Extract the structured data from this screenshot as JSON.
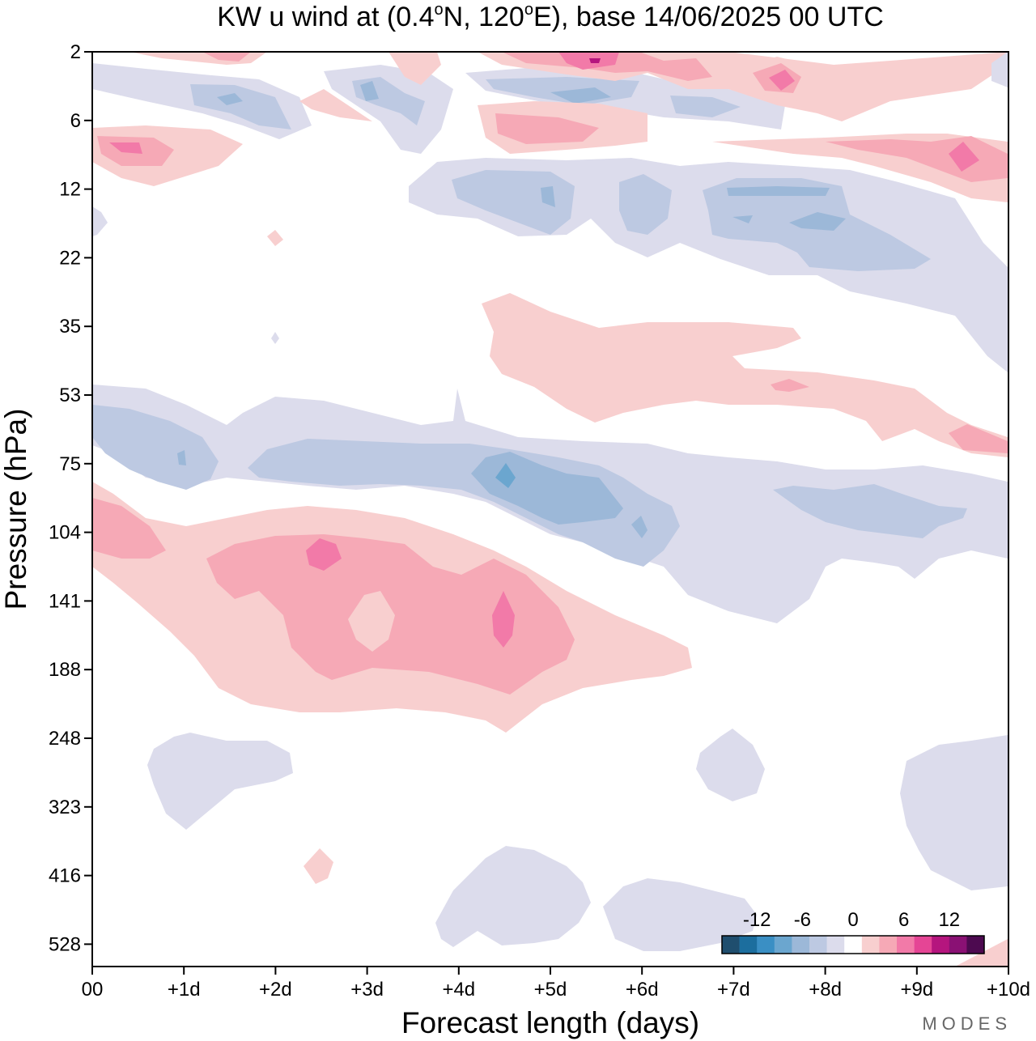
{
  "chart_data": {
    "type": "heatmap",
    "title": "KW u wind at (0.4°N, 120°E),  base 14/06/2025  00 UTC",
    "title_parts": {
      "pre": "KW u wind at (0.4",
      "deg1": "o",
      "mid": "N, 120",
      "deg2": "o",
      "post": "E),  base 14/06/2025  00 UTC"
    },
    "xlabel": "Forecast length (days)",
    "ylabel": "Pressure (hPa)",
    "x_ticks": [
      "00",
      "+1d",
      "+2d",
      "+3d",
      "+4d",
      "+5d",
      "+6d",
      "+7d",
      "+8d",
      "+9d",
      "+10d"
    ],
    "y_ticks": [
      "2",
      "6",
      "12",
      "22",
      "35",
      "53",
      "75",
      "104",
      "141",
      "188",
      "248",
      "323",
      "416",
      "528"
    ],
    "xlim": [
      0,
      10
    ],
    "colorbar": {
      "tick_labels": [
        "-12",
        "-6",
        "0",
        "6",
        "12"
      ],
      "colors": [
        "#1f4e6e",
        "#1c6e9e",
        "#3a8fc4",
        "#6ba6cf",
        "#9cb8d8",
        "#bdc9e2",
        "#dcdcec",
        "#ffffff",
        "#f8cfcf",
        "#f6a9b6",
        "#f27aa8",
        "#e54595",
        "#b5157e",
        "#8a1174",
        "#4d0a50"
      ]
    },
    "fields": [
      {
        "name": "pos6_top",
        "level": "+6",
        "t_range": [
          5.2,
          6.0
        ],
        "p_range": [
          2,
          3
        ]
      },
      {
        "name": "neg6_upper",
        "level": "-6",
        "t_range": [
          4.5,
          7.9
        ],
        "p_range": [
          10,
          20
        ]
      },
      {
        "name": "pos3_mid",
        "level": "+3",
        "t_range": [
          4.2,
          9.5
        ],
        "p_range": [
          30,
          65
        ]
      },
      {
        "name": "neg6_75hPa",
        "level": "-6",
        "t_range": [
          0.0,
          6.3
        ],
        "p_range": [
          53,
          104
        ]
      },
      {
        "name": "neg9_75hPa",
        "level": "-9",
        "t_range": [
          4.5,
          5.9
        ],
        "p_range": [
          75,
          104
        ]
      },
      {
        "name": "pos6_141hPa",
        "level": "+6",
        "t_range": [
          1.3,
          5.3
        ],
        "p_range": [
          104,
          188
        ]
      },
      {
        "name": "pos9_141hPa",
        "level": "+9",
        "t_range": [
          2.3,
          4.6
        ],
        "p_range": [
          104,
          170
        ]
      },
      {
        "name": "neg3_lower",
        "level": "-3",
        "t_range": [
          3.8,
          10.0
        ],
        "p_range": [
          248,
          528
        ]
      }
    ],
    "grid": false
  },
  "brand": "MODES"
}
